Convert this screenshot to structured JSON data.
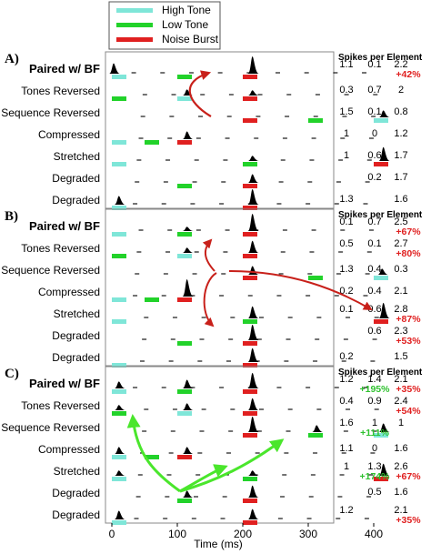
{
  "legend": [
    {
      "label": "High Tone",
      "color": "#7fe6d8"
    },
    {
      "label": "Low Tone",
      "color": "#22d22a"
    },
    {
      "label": "Noise Burst",
      "color": "#e02020"
    }
  ],
  "colors": {
    "high": "#7fe6d8",
    "low": "#22d22a",
    "noise": "#e02020",
    "spike": "#000000",
    "arrow_red": "#c8201a",
    "arrow_green": "#4ae62c"
  },
  "stats_header": "Spikes per Element",
  "axis": {
    "xlabel": "Time (ms)",
    "ticks": [
      "0",
      "100",
      "200",
      "300",
      "400"
    ]
  },
  "panels": [
    {
      "letter": "A)",
      "rows": [
        {
          "label": "Paired w/ BF",
          "bold": true,
          "stims": [
            [
              "high",
              0
            ],
            [
              "low",
              100
            ],
            [
              "noise",
              200
            ]
          ],
          "peaks": [
            [
              0,
              0.6
            ],
            [
              212,
              1.0
            ]
          ],
          "values": [
            "1.1",
            "0.1",
            "2.2"
          ],
          "pcts": [
            null,
            null,
            "+42%"
          ]
        },
        {
          "label": "Tones Reversed",
          "bold": false,
          "stims": [
            [
              "low",
              0
            ],
            [
              "high",
              100
            ],
            [
              "noise",
              200
            ]
          ],
          "peaks": [
            [
              112,
              0.35
            ],
            [
              212,
              0.3
            ]
          ],
          "values": [
            "0.3",
            "0.7",
            "2"
          ],
          "pcts": [
            null,
            null,
            null
          ]
        },
        {
          "label": "Sequence Reversed",
          "bold": false,
          "stims": [
            [
              "noise",
              200
            ],
            [
              "low",
              300
            ],
            [
              "high",
              400
            ]
          ],
          "peaks": [
            [
              412,
              0.4
            ]
          ],
          "values": [
            "1.5",
            "0.1",
            "0.8"
          ],
          "pcts": [
            null,
            null,
            null
          ]
        },
        {
          "label": "Compressed",
          "bold": false,
          "stims": [
            [
              "high",
              0
            ],
            [
              "low",
              50
            ],
            [
              "noise",
              100
            ]
          ],
          "peaks": [
            [
              112,
              0.45
            ]
          ],
          "values": [
            "1",
            "0",
            "1.2"
          ],
          "pcts": [
            null,
            null,
            null
          ]
        },
        {
          "label": "Stretched",
          "bold": false,
          "stims": [
            [
              "high",
              0
            ],
            [
              "low",
              200
            ],
            [
              "noise",
              400
            ]
          ],
          "peaks": [
            [
              212,
              0.3
            ],
            [
              412,
              0.8
            ]
          ],
          "values": [
            "1",
            "0.6",
            "1.7"
          ],
          "pcts": [
            null,
            null,
            null
          ]
        },
        {
          "label": "Degraded",
          "bold": false,
          "stims": [
            [
              "low",
              100
            ],
            [
              "noise",
              200
            ]
          ],
          "peaks": [
            [
              212,
              0.5
            ]
          ],
          "values": [
            "",
            "0.2",
            "1.7"
          ],
          "pcts": [
            null,
            null,
            null
          ]
        },
        {
          "label": "Degraded",
          "bold": false,
          "stims": [
            [
              "high",
              0
            ],
            [
              "noise",
              200
            ]
          ],
          "peaks": [
            [
              8,
              0.5
            ],
            [
              212,
              0.9
            ]
          ],
          "values": [
            "1.3",
            "",
            "1.6"
          ],
          "pcts": [
            null,
            null,
            null
          ]
        }
      ]
    },
    {
      "letter": "B)",
      "rows": [
        {
          "label": "Paired w/ BF",
          "bold": true,
          "stims": [
            [
              "high",
              0
            ],
            [
              "low",
              100
            ],
            [
              "noise",
              200
            ]
          ],
          "peaks": [
            [
              112,
              0.25
            ],
            [
              212,
              1.0
            ]
          ],
          "values": [
            "0.1",
            "0.7",
            "2.5"
          ],
          "pcts": [
            null,
            null,
            "+67%"
          ]
        },
        {
          "label": "Tones Reversed",
          "bold": false,
          "stims": [
            [
              "low",
              0
            ],
            [
              "high",
              100
            ],
            [
              "noise",
              200
            ]
          ],
          "peaks": [
            [
              112,
              0.3
            ],
            [
              212,
              0.7
            ]
          ],
          "values": [
            "0.5",
            "0.1",
            "2.7"
          ],
          "pcts": [
            null,
            null,
            "+80%"
          ]
        },
        {
          "label": "Sequence Reversed",
          "bold": false,
          "stims": [
            [
              "noise",
              200
            ],
            [
              "low",
              300
            ],
            [
              "high",
              400
            ]
          ],
          "peaks": [
            [
              212,
              0.5
            ],
            [
              410,
              0.35
            ]
          ],
          "values": [
            "1.3",
            "0.4",
            "0.3"
          ],
          "pcts": [
            null,
            null,
            null
          ]
        },
        {
          "label": "Compressed",
          "bold": false,
          "stims": [
            [
              "high",
              0
            ],
            [
              "low",
              50
            ],
            [
              "noise",
              100
            ]
          ],
          "peaks": [
            [
              112,
              1.0
            ]
          ],
          "values": [
            "0.2",
            "0.4",
            "2.1"
          ],
          "pcts": [
            null,
            null,
            null
          ]
        },
        {
          "label": "Stretched",
          "bold": false,
          "stims": [
            [
              "high",
              0
            ],
            [
              "low",
              200
            ],
            [
              "noise",
              400
            ]
          ],
          "peaks": [
            [
              212,
              0.7
            ],
            [
              412,
              0.9
            ]
          ],
          "values": [
            "0.1",
            "0.6",
            "2.8"
          ],
          "pcts": [
            null,
            null,
            "+87%"
          ]
        },
        {
          "label": "Degraded",
          "bold": false,
          "stims": [
            [
              "low",
              100
            ],
            [
              "noise",
              200
            ]
          ],
          "peaks": [
            [
              212,
              0.9
            ]
          ],
          "values": [
            "",
            "0.6",
            "2.3"
          ],
          "pcts": [
            null,
            null,
            "+53%"
          ]
        },
        {
          "label": "Degraded",
          "bold": false,
          "stims": [
            [
              "high",
              0
            ],
            [
              "noise",
              200
            ]
          ],
          "peaks": [
            [
              212,
              0.8
            ]
          ],
          "values": [
            "0.2",
            "",
            "1.5"
          ],
          "pcts": [
            null,
            null,
            null
          ]
        }
      ]
    },
    {
      "letter": "C)",
      "rows": [
        {
          "label": "Paired w/ BF",
          "bold": true,
          "stims": [
            [
              "high",
              0
            ],
            [
              "low",
              100
            ],
            [
              "noise",
              200
            ]
          ],
          "peaks": [
            [
              8,
              0.4
            ],
            [
              112,
              0.5
            ],
            [
              212,
              0.9
            ]
          ],
          "values": [
            "1.2",
            "1.4",
            "2.1"
          ],
          "pcts": [
            null,
            "+195%",
            "+35%"
          ]
        },
        {
          "label": "Tones Reversed",
          "bold": false,
          "stims": [
            [
              "low",
              0
            ],
            [
              "high",
              100
            ],
            [
              "noise",
              200
            ]
          ],
          "peaks": [
            [
              8,
              0.3
            ],
            [
              112,
              0.4
            ],
            [
              212,
              0.7
            ]
          ],
          "values": [
            "0.4",
            "0.9",
            "2.4"
          ],
          "pcts": [
            null,
            null,
            "+54%"
          ]
        },
        {
          "label": "Sequence Reversed",
          "bold": false,
          "stims": [
            [
              "noise",
              200
            ],
            [
              "low",
              300
            ],
            [
              "high",
              400
            ]
          ],
          "peaks": [
            [
              212,
              0.9
            ],
            [
              310,
              0.4
            ],
            [
              412,
              0.5
            ]
          ],
          "values": [
            "1.6",
            "1",
            "1"
          ],
          "pcts": [
            null,
            "+111%",
            null
          ]
        },
        {
          "label": "Compressed",
          "bold": false,
          "stims": [
            [
              "high",
              0
            ],
            [
              "low",
              50
            ],
            [
              "noise",
              100
            ]
          ],
          "peaks": [
            [
              8,
              0.4
            ],
            [
              112,
              0.4
            ]
          ],
          "values": [
            "1.1",
            "0",
            "1.6"
          ],
          "pcts": [
            null,
            null,
            null
          ]
        },
        {
          "label": "Stretched",
          "bold": false,
          "stims": [
            [
              "high",
              0
            ],
            [
              "low",
              200
            ],
            [
              "noise",
              400
            ]
          ],
          "peaks": [
            [
              8,
              0.3
            ],
            [
              212,
              0.3
            ],
            [
              412,
              0.7
            ]
          ],
          "values": [
            "1",
            "1.3",
            "2.6"
          ],
          "pcts": [
            null,
            "+174%",
            "+67%"
          ]
        },
        {
          "label": "Degraded",
          "bold": false,
          "stims": [
            [
              "low",
              100
            ],
            [
              "noise",
              200
            ]
          ],
          "peaks": [
            [
              112,
              0.4
            ],
            [
              212,
              0.7
            ]
          ],
          "values": [
            "",
            "0.5",
            "1.6"
          ],
          "pcts": [
            null,
            null,
            null
          ]
        },
        {
          "label": "Degraded",
          "bold": false,
          "stims": [
            [
              "high",
              0
            ],
            [
              "noise",
              200
            ]
          ],
          "peaks": [
            [
              8,
              0.5
            ],
            [
              212,
              0.6
            ]
          ],
          "values": [
            "1.2",
            "",
            "2.1"
          ],
          "pcts": [
            null,
            null,
            "+35%"
          ]
        }
      ]
    }
  ]
}
